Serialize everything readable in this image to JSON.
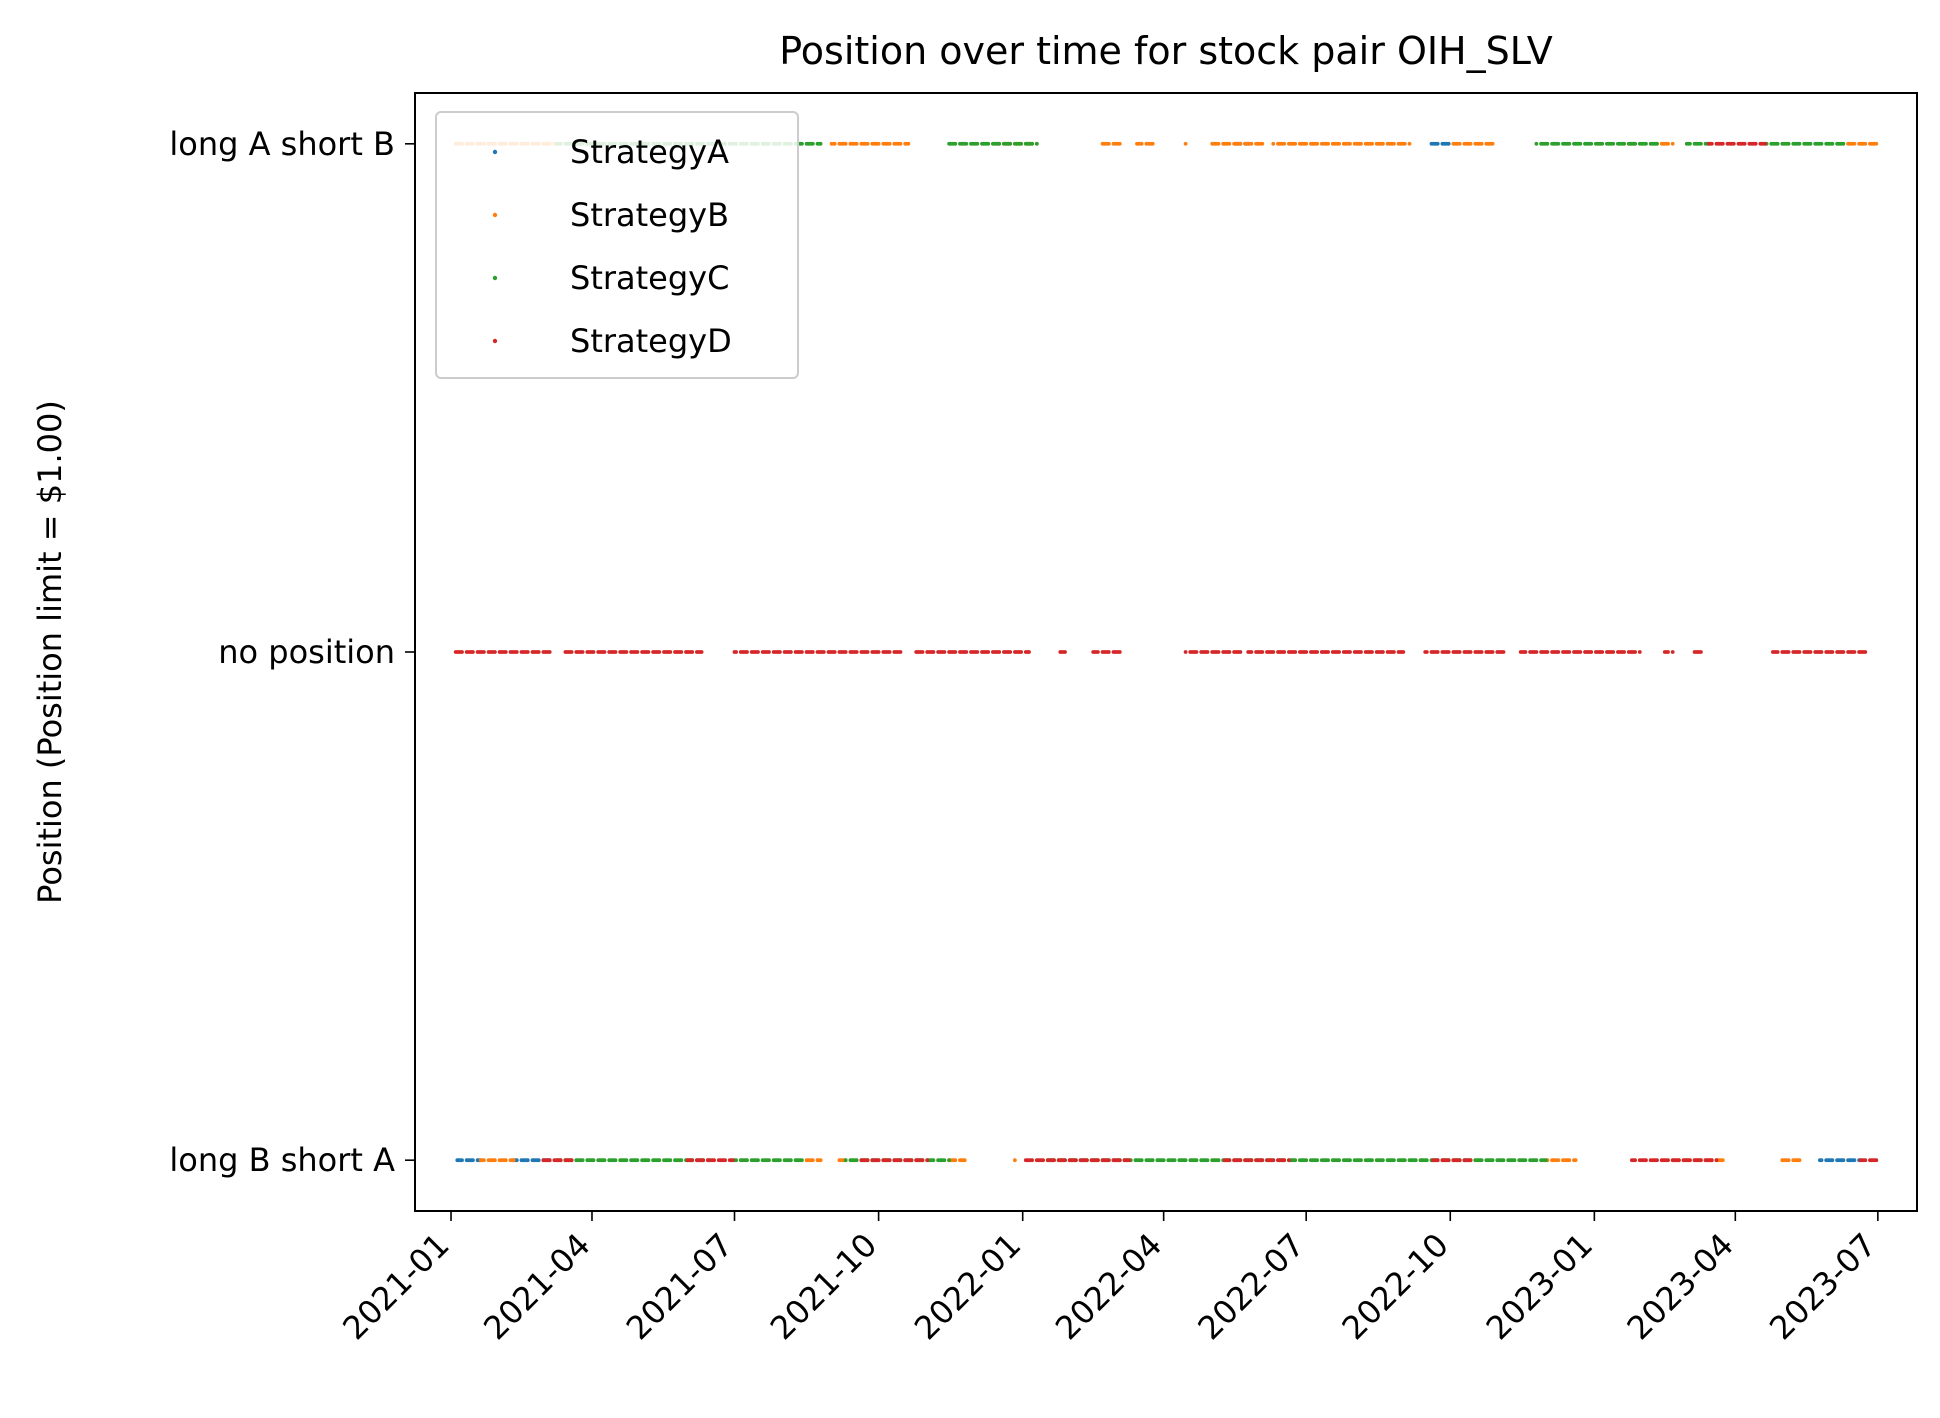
{
  "chart_data": {
    "type": "scatter",
    "title": "Position over time for stock pair OIH_SLV",
    "xlabel": "",
    "ylabel": "Position (Position limit = $1.00)",
    "x_tick_labels": [
      "2021-01",
      "2021-04",
      "2021-07",
      "2021-10",
      "2022-01",
      "2022-04",
      "2022-07",
      "2022-10",
      "2023-01",
      "2023-04",
      "2023-07"
    ],
    "xlim": [
      "2020-12-09",
      "2023-07-26"
    ],
    "y_categories": [
      "long B short A",
      "no position",
      "long A short B"
    ],
    "y_values": [
      -1,
      0,
      1
    ],
    "ylim": [
      -1.1,
      1.1
    ],
    "grid": false,
    "legend_position": "upper-left",
    "series": [
      {
        "name": "StrategyA",
        "color": "#1f77b4",
        "segments": [
          {
            "y": 1,
            "from": "2022-05-17",
            "to": "2022-05-25"
          },
          {
            "y": 1,
            "from": "2022-09-18",
            "to": "2022-10-01"
          },
          {
            "y": -1,
            "from": "2021-01-05",
            "to": "2021-01-20"
          },
          {
            "y": -1,
            "from": "2021-02-10",
            "to": "2021-03-05"
          },
          {
            "y": -1,
            "from": "2023-05-25",
            "to": "2023-06-20"
          }
        ]
      },
      {
        "name": "StrategyB",
        "color": "#ff7f0e",
        "segments": [
          {
            "y": 1,
            "from": "2021-01-02",
            "to": "2021-03-10"
          },
          {
            "y": 1,
            "from": "2021-09-01",
            "to": "2021-10-20"
          },
          {
            "y": 1,
            "from": "2021-12-15",
            "to": "2022-01-10"
          },
          {
            "y": 1,
            "from": "2022-02-20",
            "to": "2022-03-05"
          },
          {
            "y": 1,
            "from": "2022-03-15",
            "to": "2022-03-25"
          },
          {
            "y": 1,
            "from": "2022-04-15",
            "to": "2022-04-17"
          },
          {
            "y": 1,
            "from": "2022-05-01",
            "to": "2022-06-05"
          },
          {
            "y": 1,
            "from": "2022-06-10",
            "to": "2022-09-05"
          },
          {
            "y": 1,
            "from": "2022-10-01",
            "to": "2022-10-30"
          },
          {
            "y": 1,
            "from": "2023-01-20",
            "to": "2023-01-28"
          },
          {
            "y": 1,
            "from": "2023-02-10",
            "to": "2023-02-20"
          },
          {
            "y": 1,
            "from": "2023-06-10",
            "to": "2023-06-30"
          },
          {
            "y": -1,
            "from": "2021-01-20",
            "to": "2021-02-10"
          },
          {
            "y": -1,
            "from": "2021-08-15",
            "to": "2021-08-25"
          },
          {
            "y": -1,
            "from": "2021-09-05",
            "to": "2021-09-10"
          },
          {
            "y": -1,
            "from": "2021-11-15",
            "to": "2021-11-25"
          },
          {
            "y": -1,
            "from": "2021-12-25",
            "to": "2021-12-27"
          },
          {
            "y": -1,
            "from": "2022-12-01",
            "to": "2022-12-20"
          },
          {
            "y": -1,
            "from": "2023-02-20",
            "to": "2023-03-25"
          },
          {
            "y": -1,
            "from": "2023-05-01",
            "to": "2023-05-12"
          }
        ]
      },
      {
        "name": "StrategyC",
        "color": "#2ca02c",
        "segments": [
          {
            "y": 1,
            "from": "2021-03-10",
            "to": "2021-08-25"
          },
          {
            "y": 1,
            "from": "2021-11-15",
            "to": "2022-01-10"
          },
          {
            "y": 1,
            "from": "2022-11-25",
            "to": "2023-02-10"
          },
          {
            "y": 1,
            "from": "2023-03-01",
            "to": "2023-03-15"
          },
          {
            "y": 1,
            "from": "2023-04-20",
            "to": "2023-06-10"
          },
          {
            "y": -1,
            "from": "2021-03-10",
            "to": "2021-06-15"
          },
          {
            "y": -1,
            "from": "2021-07-01",
            "to": "2021-08-15"
          },
          {
            "y": -1,
            "from": "2021-09-10",
            "to": "2021-11-15"
          },
          {
            "y": -1,
            "from": "2022-01-15",
            "to": "2022-12-01"
          }
        ]
      },
      {
        "name": "StrategyD",
        "color": "#d62728",
        "segments": [
          {
            "y": 1,
            "from": "2023-03-15",
            "to": "2023-04-20"
          },
          {
            "y": 0,
            "from": "2021-01-02",
            "to": "2021-03-05"
          },
          {
            "y": 0,
            "from": "2021-03-15",
            "to": "2021-06-10"
          },
          {
            "y": 0,
            "from": "2021-07-01",
            "to": "2021-10-15"
          },
          {
            "y": 0,
            "from": "2021-10-25",
            "to": "2022-01-05"
          },
          {
            "y": 0,
            "from": "2022-01-25",
            "to": "2022-01-30"
          },
          {
            "y": 0,
            "from": "2022-02-15",
            "to": "2022-03-05"
          },
          {
            "y": 0,
            "from": "2022-04-15",
            "to": "2022-05-20"
          },
          {
            "y": 0,
            "from": "2022-05-25",
            "to": "2022-09-01"
          },
          {
            "y": 0,
            "from": "2022-09-15",
            "to": "2022-11-05"
          },
          {
            "y": 0,
            "from": "2022-11-15",
            "to": "2023-01-30"
          },
          {
            "y": 0,
            "from": "2023-02-15",
            "to": "2023-02-20"
          },
          {
            "y": 0,
            "from": "2023-03-05",
            "to": "2023-03-10"
          },
          {
            "y": 0,
            "from": "2023-04-25",
            "to": "2023-06-25"
          },
          {
            "y": -1,
            "from": "2021-03-01",
            "to": "2021-03-20"
          },
          {
            "y": -1,
            "from": "2021-06-01",
            "to": "2021-06-30"
          },
          {
            "y": -1,
            "from": "2021-09-20",
            "to": "2021-11-01"
          },
          {
            "y": -1,
            "from": "2022-01-01",
            "to": "2022-03-10"
          },
          {
            "y": -1,
            "from": "2022-05-10",
            "to": "2022-06-20"
          },
          {
            "y": -1,
            "from": "2022-09-20",
            "to": "2022-10-15"
          },
          {
            "y": -1,
            "from": "2023-01-25",
            "to": "2023-03-20"
          },
          {
            "y": -1,
            "from": "2023-06-20",
            "to": "2023-06-30"
          }
        ]
      }
    ]
  }
}
